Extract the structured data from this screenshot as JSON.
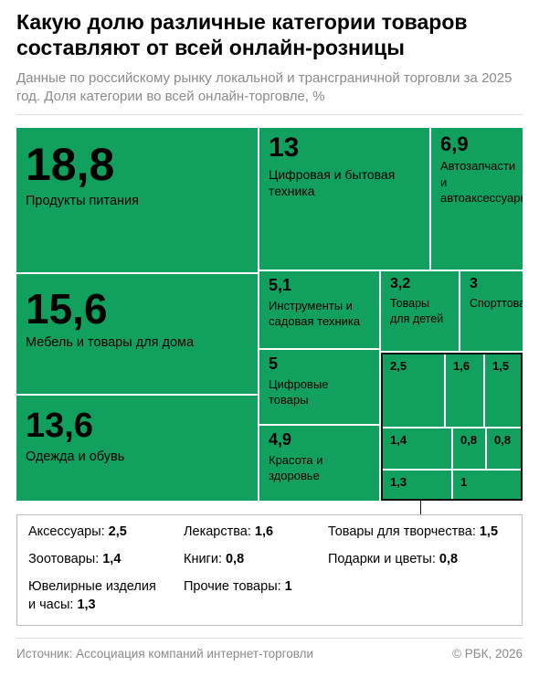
{
  "chart_data": {
    "type": "treemap",
    "title": "Какую долю различные категории товаров составляют от всей онлайн-розницы",
    "subtitle": "Данные по российскому рынку локальной и трансграничной торговли за 2025 год. Доля категории во всей онлайн-торговле, %",
    "categories": [
      "Продукты питания",
      "Мебель и товары для дома",
      "Одежда и обувь",
      "Цифровая и бытовая техника",
      "Автозапчасти и автоаксессуары",
      "Инструменты и садовая техника",
      "Цифровые товары",
      "Красота и здоровье",
      "Товары для детей",
      "Спорттовары",
      "Аксессуары",
      "Лекарства",
      "Товары для творчества",
      "Зоотовары",
      "Книги",
      "Подарки и цветы",
      "Ювелирные изделия и часы",
      "Прочие товары"
    ],
    "values": [
      18.8,
      15.6,
      13.6,
      13,
      6.9,
      5.1,
      5,
      4.9,
      3.2,
      3,
      2.5,
      1.6,
      1.5,
      1.4,
      0.8,
      0.8,
      1.3,
      1
    ],
    "value_labels": [
      "18,8",
      "15,6",
      "13,6",
      "13",
      "6,9",
      "5,1",
      "5",
      "4,9",
      "3,2",
      "3",
      "2,5",
      "1,6",
      "1,5",
      "1,4",
      "0,8",
      "0,8",
      "1,3",
      "1"
    ],
    "color": "#12a05e",
    "source": "Источник: Ассоциация компаний интернет-торговли",
    "credit": "© РБК, 2026"
  }
}
